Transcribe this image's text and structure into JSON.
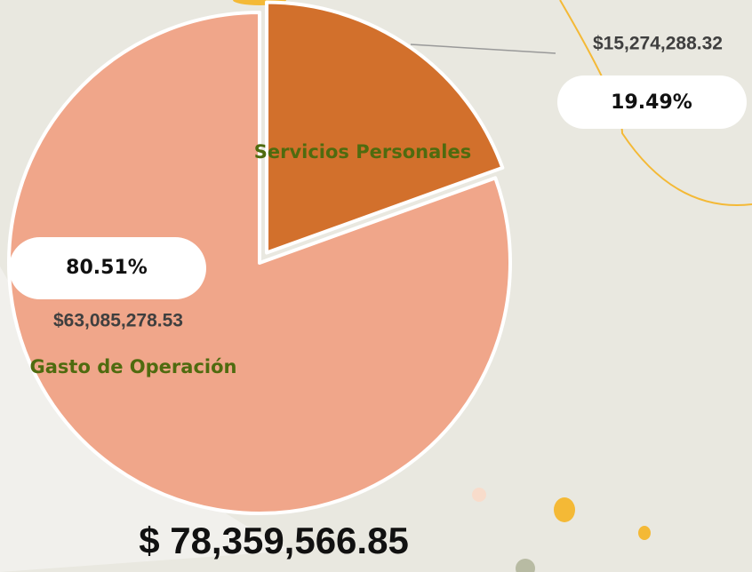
{
  "chart_data": {
    "type": "pie",
    "categories": [
      "Servicios Personales",
      "Gasto de Operación"
    ],
    "values": [
      19.49,
      80.51
    ],
    "value_labels": [
      "19.49%",
      "80.51%"
    ],
    "amounts": [
      15274288.32,
      63085278.53
    ],
    "amount_labels": [
      "$15,274,288.32",
      "$63,085,278.53"
    ],
    "colors": [
      "#d2702c",
      "#f0a68a"
    ],
    "total": 78359566.85,
    "total_label": "$ 78,359,566.85"
  }
}
